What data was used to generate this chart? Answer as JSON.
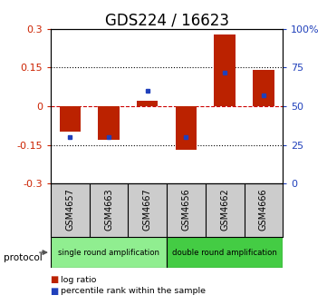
{
  "title": "GDS224 / 16623",
  "samples": [
    "GSM4657",
    "GSM4663",
    "GSM4667",
    "GSM4656",
    "GSM4662",
    "GSM4666"
  ],
  "log_ratios": [
    -0.1,
    -0.13,
    0.02,
    -0.17,
    0.28,
    0.14
  ],
  "percentile_ranks": [
    0.3,
    0.3,
    0.6,
    0.3,
    0.72,
    0.57
  ],
  "ylim": [
    -0.3,
    0.3
  ],
  "yticks": [
    -0.3,
    -0.15,
    0,
    0.15,
    0.3
  ],
  "ytick_labels_left": [
    "-0.3",
    "-0.15",
    "0",
    "0.15",
    "0.3"
  ],
  "ytick_labels_right": [
    "0",
    "25",
    "50",
    "75",
    "100%"
  ],
  "hlines": [
    0.15,
    -0.15
  ],
  "bar_color": "#bb2200",
  "dot_color": "#2040bb",
  "zero_line_color": "#cc0000",
  "dotted_line_color": "#555555",
  "protocol_groups": [
    {
      "label": "single round amplification",
      "color": "#90ee90",
      "start": 0,
      "end": 3
    },
    {
      "label": "double round amplification",
      "color": "#44cc44",
      "start": 3,
      "end": 6
    }
  ],
  "protocol_label": "protocol",
  "legend_items": [
    {
      "label": "log ratio",
      "color": "#bb2200"
    },
    {
      "label": "percentile rank within the sample",
      "color": "#2040bb"
    }
  ],
  "bg_color": "#ffffff",
  "plot_bg": "#ffffff",
  "title_fontsize": 12,
  "tick_fontsize": 8,
  "sample_label_fontsize": 7,
  "sample_box_color": "#cccccc"
}
